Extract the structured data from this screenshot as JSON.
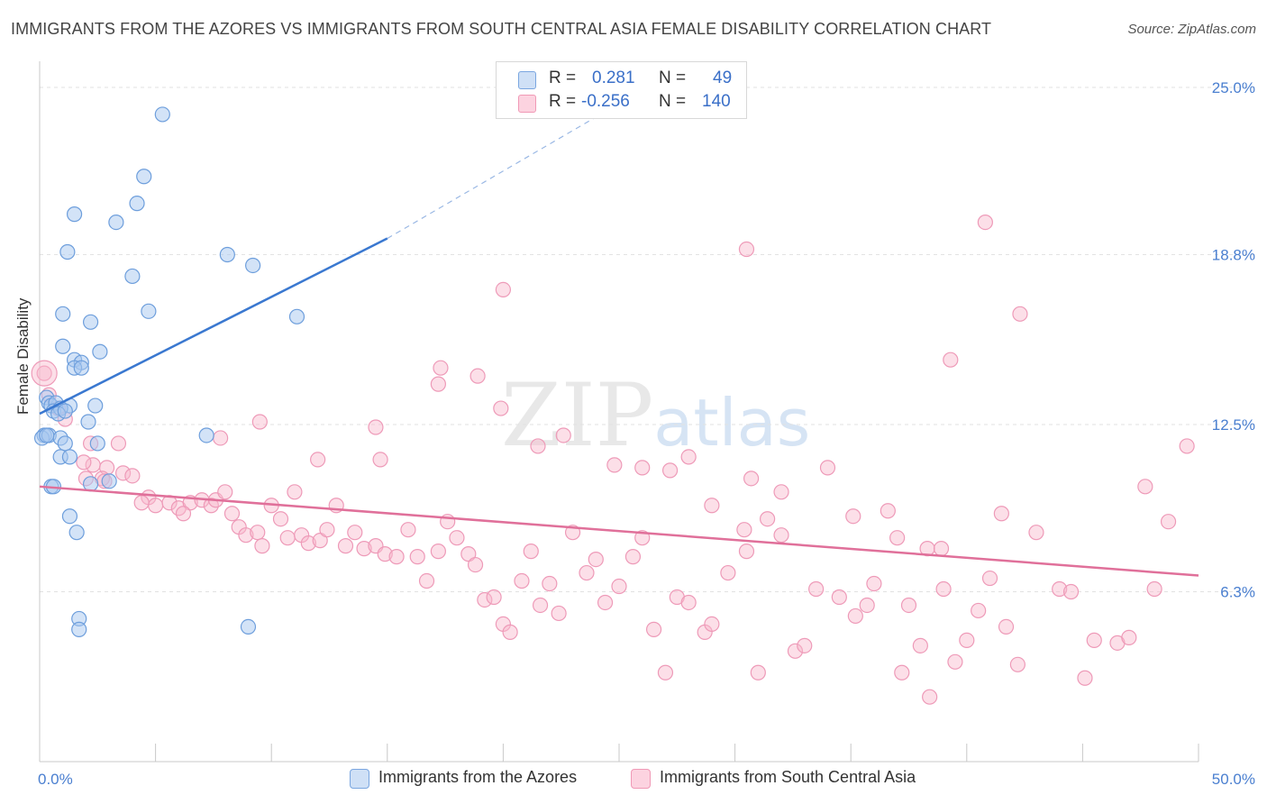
{
  "title": "IMMIGRANTS FROM THE AZORES VS IMMIGRANTS FROM SOUTH CENTRAL ASIA FEMALE DISABILITY CORRELATION CHART",
  "source": "Source: ZipAtlas.com",
  "watermark": {
    "zip": "ZIP",
    "atlas": "atlas"
  },
  "legend": {
    "rows": [
      {
        "r_label": "R =",
        "r_value": "0.281",
        "n_label": "N =",
        "n_value": "49",
        "color": "#a8c8f0"
      },
      {
        "r_label": "R =",
        "r_value": "-0.256",
        "n_label": "N =",
        "n_value": "140",
        "color": "#f8b8cc"
      }
    ]
  },
  "bottom_legend": [
    {
      "label": "Immigrants from the Azores",
      "color": "#a8c8f0"
    },
    {
      "label": "Immigrants from South Central Asia",
      "color": "#f8b8cc"
    }
  ],
  "chart_data": {
    "type": "scatter",
    "title": "IMMIGRANTS FROM THE AZORES VS IMMIGRANTS FROM SOUTH CENTRAL ASIA FEMALE DISABILITY CORRELATION CHART",
    "xlabel": "",
    "ylabel": "Female Disability",
    "xlim": [
      0,
      50
    ],
    "ylim": [
      0,
      26
    ],
    "x_tick_labels": [
      "0.0%",
      "50.0%"
    ],
    "y_ticks": [
      6.3,
      12.5,
      18.8,
      25.0
    ],
    "y_tick_labels": [
      "6.3%",
      "12.5%",
      "18.8%",
      "25.0%"
    ],
    "grid": true,
    "series": [
      {
        "name": "Immigrants from the Azores",
        "color": "#3a78d0",
        "fill": "#a8c8f0",
        "trend": {
          "x": [
            0,
            15
          ],
          "y": [
            12.9,
            19.4
          ],
          "dashed_to": [
            25.0,
            24.4
          ]
        },
        "points": [
          [
            5.3,
            24.0
          ],
          [
            4.5,
            21.7
          ],
          [
            4.2,
            20.7
          ],
          [
            1.5,
            20.3
          ],
          [
            3.3,
            20.0
          ],
          [
            1.2,
            18.9
          ],
          [
            8.1,
            18.8
          ],
          [
            4.0,
            18.0
          ],
          [
            9.2,
            18.4
          ],
          [
            1.0,
            16.6
          ],
          [
            4.7,
            16.7
          ],
          [
            2.2,
            16.3
          ],
          [
            11.1,
            16.5
          ],
          [
            1.0,
            15.4
          ],
          [
            2.6,
            15.2
          ],
          [
            1.5,
            14.9
          ],
          [
            1.8,
            14.8
          ],
          [
            1.5,
            14.6
          ],
          [
            1.8,
            14.6
          ],
          [
            0.3,
            13.5
          ],
          [
            0.4,
            13.3
          ],
          [
            0.5,
            13.2
          ],
          [
            0.7,
            13.3
          ],
          [
            1.3,
            13.2
          ],
          [
            2.4,
            13.2
          ],
          [
            0.6,
            13.0
          ],
          [
            0.9,
            13.1
          ],
          [
            0.2,
            12.1
          ],
          [
            2.1,
            12.6
          ],
          [
            0.1,
            12.0
          ],
          [
            0.4,
            12.1
          ],
          [
            0.9,
            12.0
          ],
          [
            7.2,
            12.1
          ],
          [
            1.1,
            11.8
          ],
          [
            2.5,
            11.8
          ],
          [
            0.9,
            11.3
          ],
          [
            1.3,
            11.3
          ],
          [
            3.0,
            10.4
          ],
          [
            2.2,
            10.3
          ],
          [
            0.5,
            10.2
          ],
          [
            0.6,
            10.2
          ],
          [
            1.3,
            9.1
          ],
          [
            1.6,
            8.5
          ],
          [
            1.7,
            5.3
          ],
          [
            1.7,
            4.9
          ],
          [
            9.0,
            5.0
          ],
          [
            0.8,
            12.9
          ],
          [
            1.1,
            13.0
          ],
          [
            0.3,
            12.1
          ]
        ]
      },
      {
        "name": "Immigrants from South Central Asia",
        "color": "#e0709a",
        "fill": "#f8b8cc",
        "trend": {
          "x": [
            0,
            50
          ],
          "y": [
            10.2,
            6.9
          ]
        },
        "points": [
          [
            0.2,
            14.4
          ],
          [
            0.4,
            13.6
          ],
          [
            0.8,
            13.1
          ],
          [
            1.1,
            12.7
          ],
          [
            2.2,
            11.8
          ],
          [
            3.4,
            11.8
          ],
          [
            2.3,
            11.0
          ],
          [
            2.9,
            10.9
          ],
          [
            1.9,
            11.1
          ],
          [
            2.0,
            10.5
          ],
          [
            2.7,
            10.5
          ],
          [
            3.6,
            10.7
          ],
          [
            4.0,
            10.6
          ],
          [
            2.8,
            10.4
          ],
          [
            4.7,
            9.8
          ],
          [
            5.0,
            9.5
          ],
          [
            5.6,
            9.6
          ],
          [
            6.0,
            9.4
          ],
          [
            6.5,
            9.6
          ],
          [
            4.4,
            9.6
          ],
          [
            6.2,
            9.2
          ],
          [
            7.0,
            9.7
          ],
          [
            7.4,
            9.5
          ],
          [
            7.6,
            9.7
          ],
          [
            8.0,
            10.0
          ],
          [
            8.3,
            9.2
          ],
          [
            8.6,
            8.7
          ],
          [
            8.9,
            8.4
          ],
          [
            9.4,
            8.5
          ],
          [
            9.6,
            8.0
          ],
          [
            10.0,
            9.5
          ],
          [
            10.4,
            9.0
          ],
          [
            10.7,
            8.3
          ],
          [
            11.0,
            10.0
          ],
          [
            11.3,
            8.4
          ],
          [
            11.6,
            8.1
          ],
          [
            12.1,
            8.2
          ],
          [
            12.4,
            8.6
          ],
          [
            12.8,
            9.5
          ],
          [
            13.2,
            8.0
          ],
          [
            13.6,
            8.5
          ],
          [
            14.0,
            7.9
          ],
          [
            14.5,
            8.0
          ],
          [
            14.9,
            7.7
          ],
          [
            15.4,
            7.6
          ],
          [
            15.9,
            8.6
          ],
          [
            16.3,
            7.6
          ],
          [
            16.7,
            6.7
          ],
          [
            17.2,
            7.8
          ],
          [
            17.6,
            8.9
          ],
          [
            18.0,
            8.3
          ],
          [
            18.5,
            7.7
          ],
          [
            18.8,
            7.3
          ],
          [
            19.2,
            6.0
          ],
          [
            19.6,
            6.1
          ],
          [
            20.0,
            5.1
          ],
          [
            20.3,
            4.8
          ],
          [
            20.8,
            6.7
          ],
          [
            21.2,
            7.8
          ],
          [
            21.6,
            5.8
          ],
          [
            22.0,
            6.6
          ],
          [
            22.4,
            5.5
          ],
          [
            23.0,
            8.5
          ],
          [
            23.6,
            7.0
          ],
          [
            24.0,
            7.5
          ],
          [
            24.4,
            5.9
          ],
          [
            25.0,
            6.5
          ],
          [
            25.6,
            7.6
          ],
          [
            26.0,
            8.3
          ],
          [
            26.5,
            4.9
          ],
          [
            27.0,
            3.3
          ],
          [
            27.5,
            6.1
          ],
          [
            28.0,
            5.9
          ],
          [
            28.7,
            4.8
          ],
          [
            29.0,
            5.1
          ],
          [
            29.7,
            7.0
          ],
          [
            30.5,
            7.8
          ],
          [
            31.4,
            9.0
          ],
          [
            32.0,
            8.4
          ],
          [
            32.6,
            4.1
          ],
          [
            33.0,
            4.3
          ],
          [
            33.5,
            6.4
          ],
          [
            34.5,
            6.1
          ],
          [
            35.2,
            5.4
          ],
          [
            36.0,
            6.6
          ],
          [
            36.6,
            9.3
          ],
          [
            37.2,
            3.3
          ],
          [
            38.0,
            4.3
          ],
          [
            38.4,
            2.4
          ],
          [
            39.0,
            6.4
          ],
          [
            40.0,
            4.5
          ],
          [
            40.5,
            5.6
          ],
          [
            41.0,
            6.8
          ],
          [
            7.8,
            12.0
          ],
          [
            9.5,
            12.6
          ],
          [
            12.0,
            11.2
          ],
          [
            14.5,
            12.4
          ],
          [
            14.7,
            11.2
          ],
          [
            17.2,
            14.0
          ],
          [
            17.3,
            14.6
          ],
          [
            18.9,
            14.3
          ],
          [
            19.9,
            13.1
          ],
          [
            21.5,
            11.7
          ],
          [
            22.6,
            12.1
          ],
          [
            24.8,
            11.0
          ],
          [
            26.0,
            10.9
          ],
          [
            27.2,
            10.8
          ],
          [
            28.0,
            11.3
          ],
          [
            29.0,
            9.5
          ],
          [
            30.4,
            8.6
          ],
          [
            30.7,
            10.5
          ],
          [
            32.0,
            10.0
          ],
          [
            34.0,
            10.9
          ],
          [
            35.1,
            9.1
          ],
          [
            35.7,
            5.8
          ],
          [
            37.0,
            8.3
          ],
          [
            38.3,
            7.9
          ],
          [
            38.9,
            7.9
          ],
          [
            41.5,
            9.2
          ],
          [
            43.0,
            8.5
          ],
          [
            44.0,
            6.4
          ],
          [
            44.5,
            6.3
          ],
          [
            45.5,
            4.5
          ],
          [
            46.5,
            4.4
          ],
          [
            47.0,
            4.6
          ],
          [
            47.7,
            10.2
          ],
          [
            48.1,
            6.4
          ],
          [
            48.7,
            8.9
          ],
          [
            49.5,
            11.7
          ],
          [
            30.5,
            19.0
          ],
          [
            20.0,
            17.5
          ],
          [
            40.8,
            20.0
          ],
          [
            39.3,
            14.9
          ],
          [
            42.3,
            16.6
          ],
          [
            39.5,
            3.7
          ],
          [
            31.0,
            3.3
          ],
          [
            42.2,
            3.6
          ],
          [
            45.1,
            3.1
          ],
          [
            37.5,
            5.8
          ],
          [
            41.7,
            5.0
          ]
        ]
      }
    ]
  }
}
